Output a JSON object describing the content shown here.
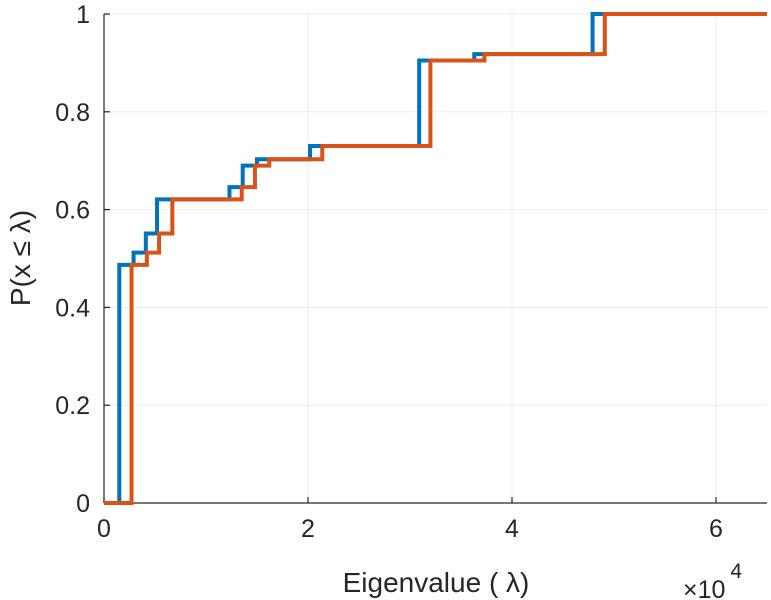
{
  "chart_data": {
    "type": "line",
    "title": "",
    "xlabel": "Eigenvalue (  λ)",
    "ylabel": "P(x ≤ λ)",
    "x_exponent_label": {
      "times": "×10",
      "power": "4"
    },
    "xlim": [
      0,
      65000
    ],
    "ylim": [
      0,
      1
    ],
    "x_ticks": [
      0,
      20000,
      40000,
      60000
    ],
    "x_tick_labels": [
      "0",
      "2",
      "4",
      "6"
    ],
    "y_ticks": [
      0,
      0.2,
      0.4,
      0.6,
      0.8,
      1
    ],
    "y_tick_labels": [
      "0",
      "0.2",
      "0.4",
      "0.6",
      "0.8",
      "1"
    ],
    "grid": true,
    "step_plot": true,
    "series": [
      {
        "color": "#0072BD",
        "x": [
          1500,
          2900,
          4100,
          5200,
          12300,
          13600,
          15000,
          20200,
          30900,
          36300,
          47900
        ],
        "y": [
          0.487,
          0.512,
          0.551,
          0.621,
          0.646,
          0.69,
          0.703,
          0.73,
          0.905,
          0.918,
          1.0
        ]
      },
      {
        "color": "#D95319",
        "x": [
          2700,
          4200,
          5400,
          6700,
          13500,
          14800,
          16200,
          21400,
          32000,
          37300,
          49100
        ],
        "y": [
          0.487,
          0.512,
          0.551,
          0.621,
          0.646,
          0.69,
          0.703,
          0.73,
          0.905,
          0.918,
          1.0
        ]
      }
    ]
  }
}
